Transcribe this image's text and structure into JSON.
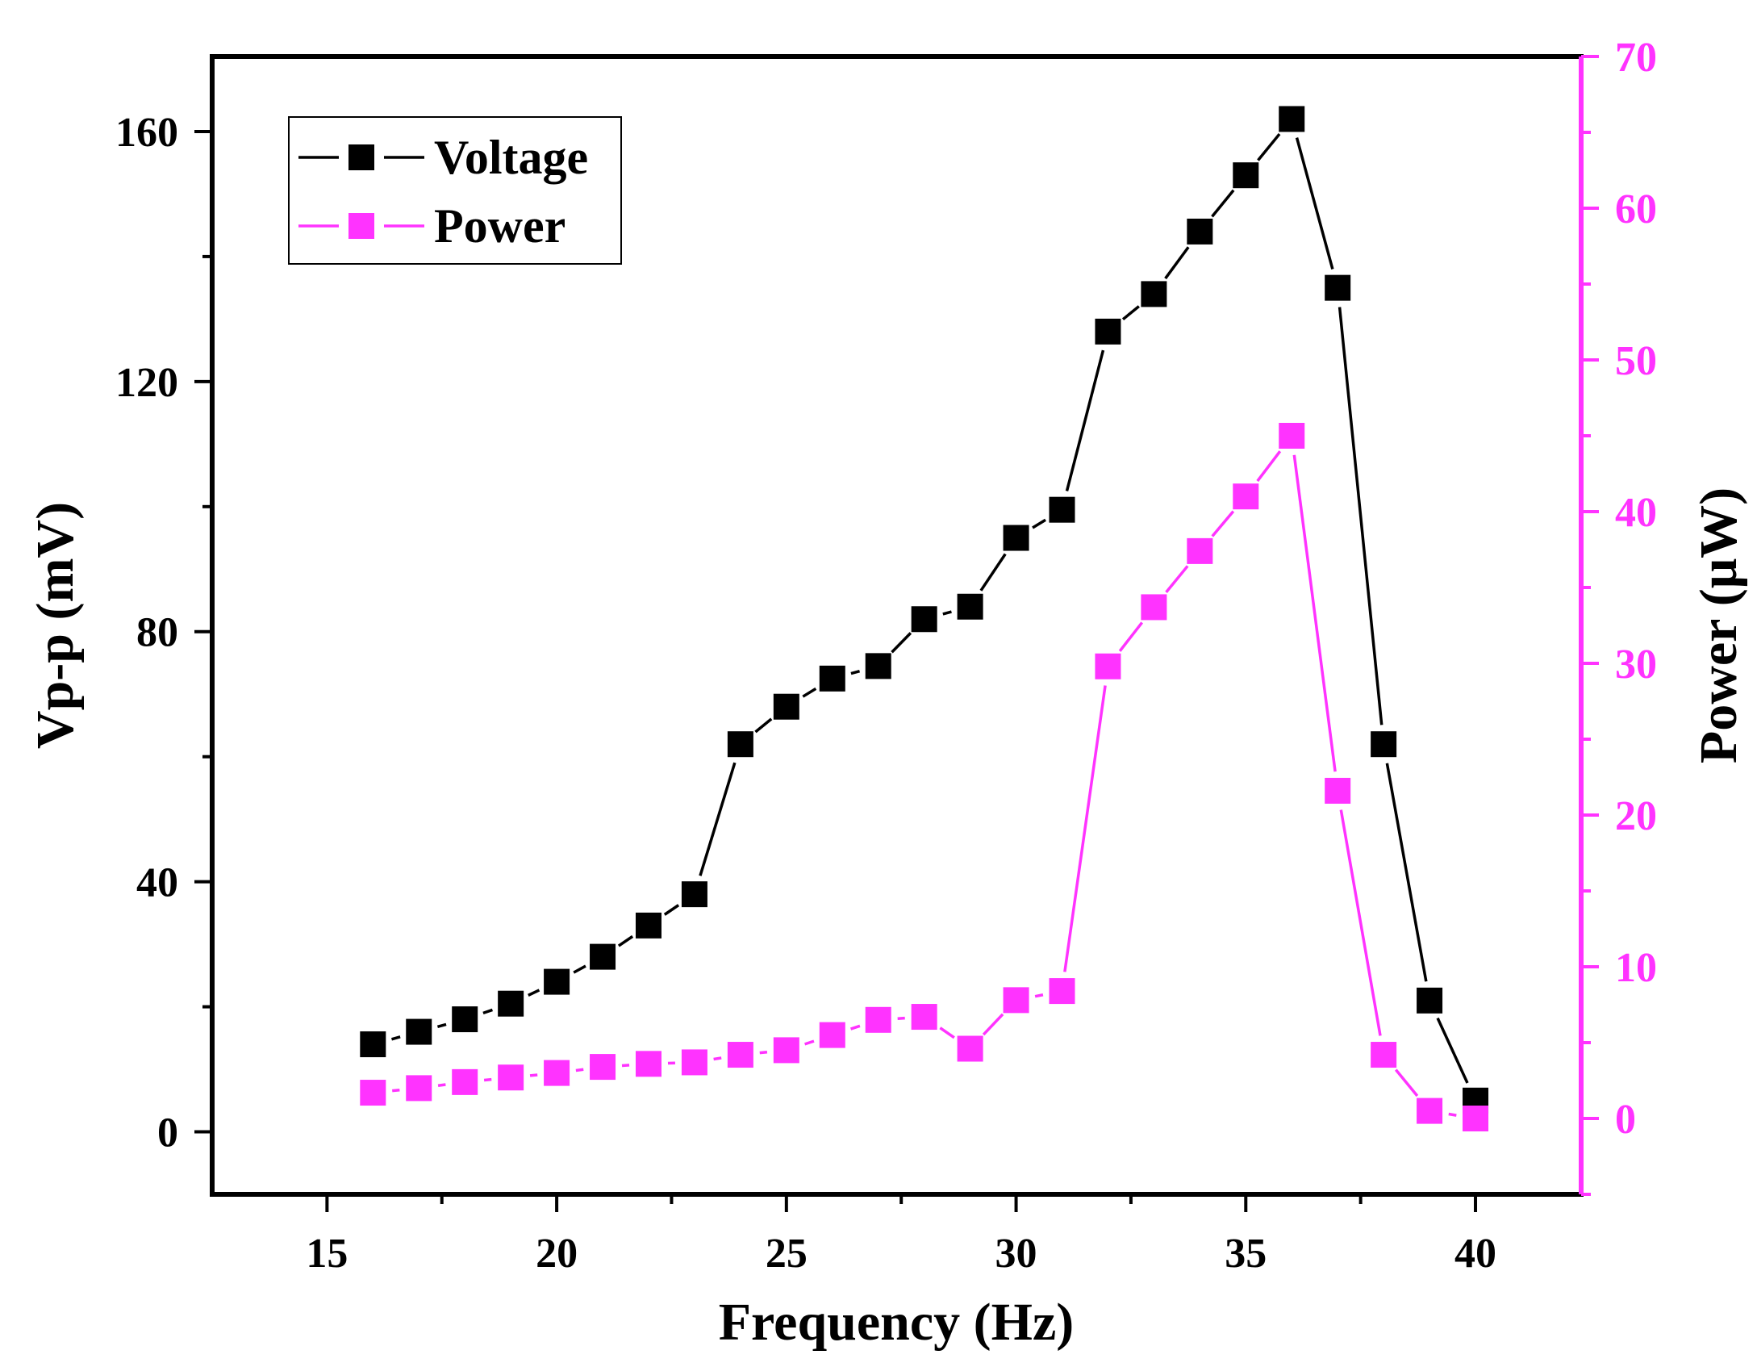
{
  "chart_data": {
    "type": "line",
    "xlabel": "Frequency (Hz)",
    "ylabel": "Vp-p (mV)",
    "y2label": "Power (μW)",
    "xlim": [
      12.5,
      42.3
    ],
    "ylim": [
      -10,
      172
    ],
    "y2lim": [
      -5,
      70
    ],
    "xticks": [
      15,
      20,
      25,
      30,
      35,
      40
    ],
    "yticks": [
      0,
      40,
      80,
      120,
      160
    ],
    "y2ticks": [
      0,
      10,
      20,
      30,
      40,
      50,
      60,
      70
    ],
    "x": [
      16,
      17,
      18,
      19,
      20,
      21,
      22,
      23,
      24,
      25,
      26,
      27,
      28,
      29,
      30,
      31,
      32,
      33,
      34,
      35,
      36,
      37,
      38,
      39,
      40
    ],
    "series": [
      {
        "name": "Voltage",
        "axis": "left",
        "color": "#000000",
        "marker": "square",
        "values": [
          14,
          16,
          18,
          20.5,
          24,
          28,
          33,
          38,
          62,
          68,
          72.5,
          74.5,
          82,
          84,
          95,
          99.5,
          128,
          134,
          144,
          153,
          162,
          135,
          62,
          21,
          5
        ]
      },
      {
        "name": "Power",
        "axis": "right",
        "color": "#ff33ff",
        "marker": "square",
        "values": [
          1.7,
          2.0,
          2.4,
          2.7,
          3.0,
          3.4,
          3.6,
          3.7,
          4.2,
          4.5,
          5.5,
          6.5,
          6.7,
          4.6,
          7.8,
          8.4,
          29.8,
          33.7,
          37.4,
          41.0,
          45.0,
          21.6,
          4.2,
          0.5,
          0.0
        ]
      }
    ],
    "legend_position": "top-left",
    "grid": false
  }
}
